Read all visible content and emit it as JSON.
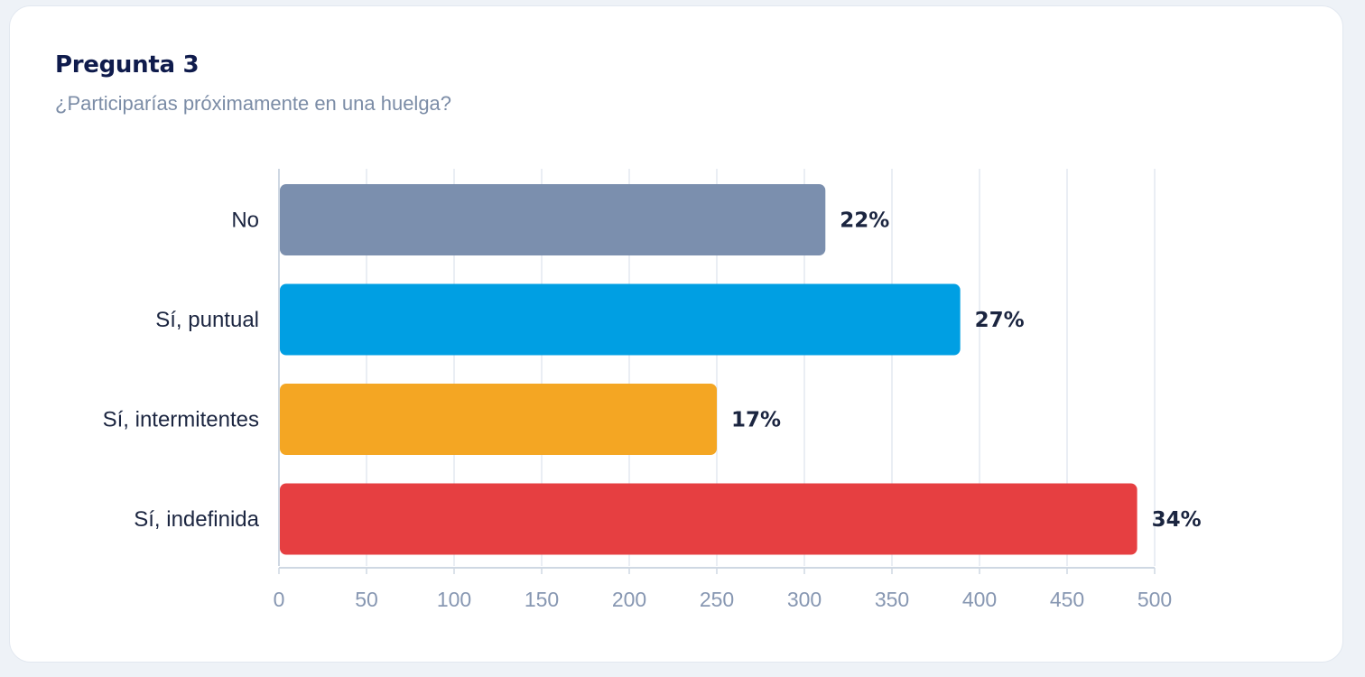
{
  "card": {
    "title": "Pregunta 3",
    "subtitle": "¿Participarías próximamente en una huelga?"
  },
  "chart_data": {
    "type": "bar",
    "orientation": "horizontal",
    "categories": [
      "No",
      "Sí, puntual",
      "Sí, intermitentes",
      "Sí, indefinida"
    ],
    "values": [
      312,
      389,
      250,
      490
    ],
    "labels": [
      "22%",
      "27%",
      "17%",
      "34%"
    ],
    "colors": [
      "#7b8fae",
      "#009fe3",
      "#f4a623",
      "#e63f41"
    ],
    "xlim": [
      0,
      500
    ],
    "xticks": [
      0,
      50,
      100,
      150,
      200,
      250,
      300,
      350,
      400,
      450,
      500
    ],
    "grid": true,
    "title": "Pregunta 3",
    "subtitle": "¿Participarías próximamente en una huelga?",
    "xlabel": "",
    "ylabel": ""
  }
}
